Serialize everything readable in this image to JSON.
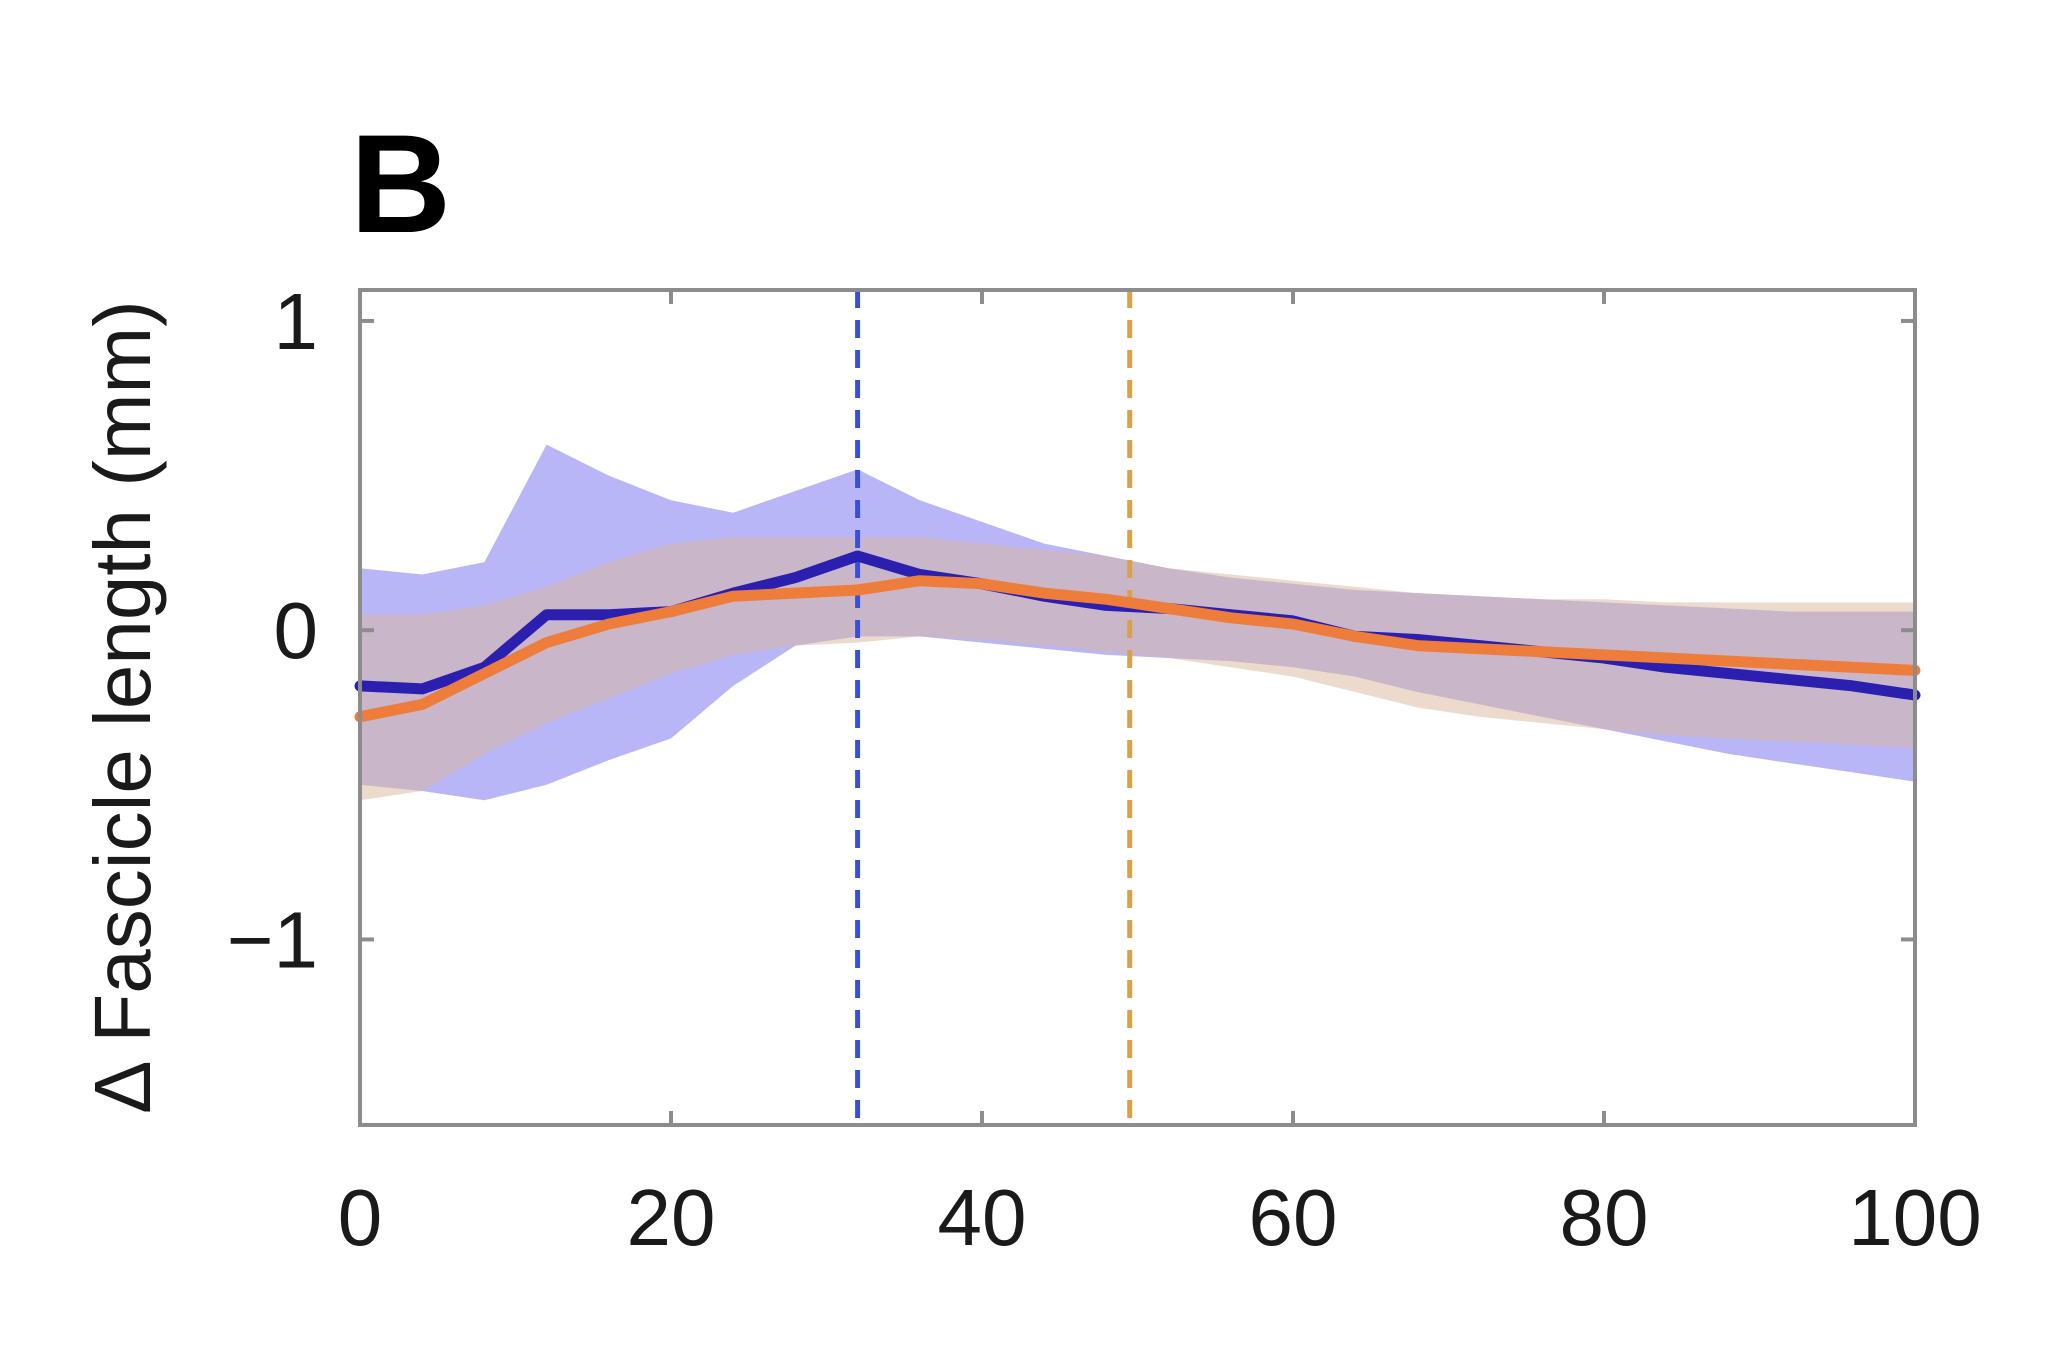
{
  "chart_data": {
    "type": "line",
    "panel_label": "B",
    "title": "",
    "xlabel": "",
    "ylabel": "Δ Fascicle length (mm)",
    "xlim": [
      0,
      100
    ],
    "ylim": [
      -1.6,
      1.1
    ],
    "x_ticks": [
      0,
      20,
      40,
      60,
      80,
      100
    ],
    "x_tick_labels": [
      "0",
      "20",
      "40",
      "60",
      "80",
      "100"
    ],
    "y_ticks": [
      1,
      0,
      -1
    ],
    "y_tick_labels": [
      "1",
      "0",
      "−1"
    ],
    "grid": false,
    "legend": "none",
    "series": [
      {
        "color": "#2b1fb0",
        "band_color": "#8a86f2",
        "x": [
          0,
          4,
          8,
          12,
          16,
          20,
          24,
          28,
          32,
          36,
          40,
          44,
          48,
          52,
          56,
          60,
          64,
          68,
          72,
          76,
          80,
          84,
          88,
          92,
          96,
          100
        ],
        "y": [
          -0.18,
          -0.19,
          -0.12,
          0.05,
          0.05,
          0.06,
          0.12,
          0.17,
          0.24,
          0.18,
          0.15,
          0.11,
          0.08,
          0.07,
          0.05,
          0.03,
          -0.02,
          -0.03,
          -0.05,
          -0.07,
          -0.09,
          -0.12,
          -0.14,
          -0.16,
          -0.18,
          -0.21
        ],
        "lower": [
          -0.5,
          -0.52,
          -0.55,
          -0.5,
          -0.42,
          -0.35,
          -0.18,
          -0.05,
          -0.02,
          -0.02,
          -0.04,
          -0.06,
          -0.08,
          -0.09,
          -0.1,
          -0.12,
          -0.15,
          -0.2,
          -0.24,
          -0.28,
          -0.32,
          -0.36,
          -0.4,
          -0.43,
          -0.46,
          -0.49
        ],
        "upper": [
          0.2,
          0.18,
          0.22,
          0.6,
          0.5,
          0.42,
          0.38,
          0.45,
          0.52,
          0.42,
          0.35,
          0.28,
          0.24,
          0.2,
          0.17,
          0.15,
          0.13,
          0.12,
          0.11,
          0.1,
          0.09,
          0.08,
          0.07,
          0.06,
          0.06,
          0.06
        ],
        "marker_x": 32
      },
      {
        "color": "#ee7c3b",
        "band_color": "#d9b59a",
        "x": [
          0,
          4,
          8,
          12,
          16,
          20,
          24,
          28,
          32,
          36,
          40,
          44,
          48,
          52,
          56,
          60,
          64,
          68,
          72,
          76,
          80,
          84,
          88,
          92,
          96,
          100
        ],
        "y": [
          -0.28,
          -0.24,
          -0.14,
          -0.04,
          0.02,
          0.06,
          0.11,
          0.12,
          0.13,
          0.16,
          0.15,
          0.12,
          0.1,
          0.07,
          0.04,
          0.02,
          -0.02,
          -0.05,
          -0.06,
          -0.07,
          -0.08,
          -0.09,
          -0.1,
          -0.11,
          -0.12,
          -0.13
        ],
        "lower": [
          -0.55,
          -0.52,
          -0.4,
          -0.3,
          -0.22,
          -0.14,
          -0.08,
          -0.05,
          -0.04,
          -0.02,
          -0.03,
          -0.05,
          -0.07,
          -0.09,
          -0.12,
          -0.15,
          -0.2,
          -0.25,
          -0.28,
          -0.3,
          -0.32,
          -0.34,
          -0.35,
          -0.36,
          -0.37,
          -0.38
        ],
        "upper": [
          0.05,
          0.05,
          0.08,
          0.14,
          0.22,
          0.28,
          0.3,
          0.3,
          0.3,
          0.3,
          0.28,
          0.26,
          0.24,
          0.2,
          0.18,
          0.16,
          0.14,
          0.12,
          0.11,
          0.1,
          0.1,
          0.09,
          0.09,
          0.09,
          0.09,
          0.09
        ],
        "marker_x": 49.5
      }
    ]
  }
}
